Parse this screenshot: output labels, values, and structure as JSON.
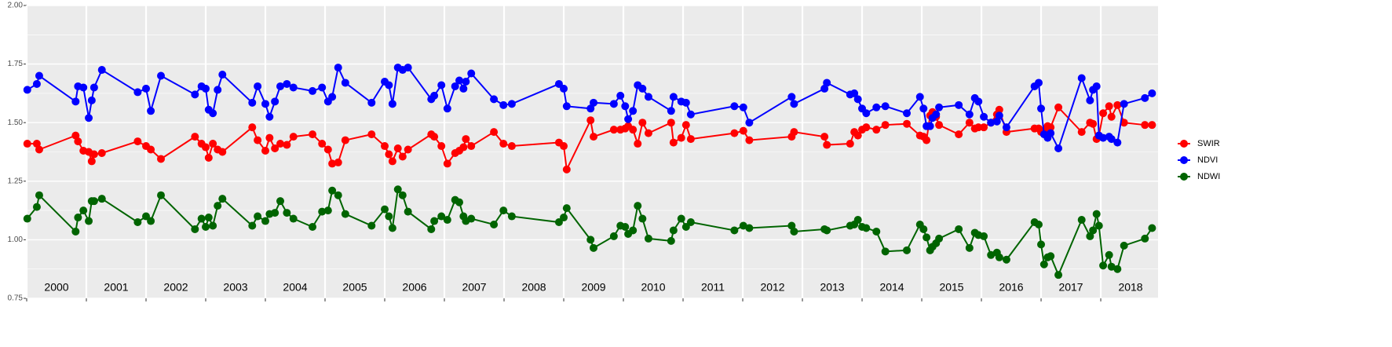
{
  "chart_data": {
    "type": "line",
    "x": [
      2000.01,
      2000.17,
      2000.21,
      2000.82,
      2000.86,
      2000.95,
      2001.04,
      2001.09,
      2001.13,
      2001.26,
      2001.86,
      2002.0,
      2002.08,
      2002.25,
      2002.82,
      2002.93,
      2003.0,
      2003.05,
      2003.12,
      2003.2,
      2003.28,
      2003.78,
      2003.87,
      2004.0,
      2004.07,
      2004.16,
      2004.25,
      2004.36,
      2004.47,
      2004.79,
      2004.95,
      2005.05,
      2005.12,
      2005.22,
      2005.34,
      2005.78,
      2006.0,
      2006.07,
      2006.13,
      2006.22,
      2006.3,
      2006.39,
      2006.78,
      2006.83,
      2006.95,
      2007.05,
      2007.18,
      2007.25,
      2007.32,
      2007.36,
      2007.45,
      2007.83,
      2007.99,
      2008.13,
      2008.92,
      2009.0,
      2009.05,
      2009.45,
      2009.5,
      2009.84,
      2009.95,
      2010.03,
      2010.08,
      2010.16,
      2010.24,
      2010.32,
      2010.42,
      2010.8,
      2010.84,
      2010.97,
      2011.05,
      2011.13,
      2011.86,
      2012.01,
      2012.11,
      2012.82,
      2012.86,
      2013.37,
      2013.41,
      2013.8,
      2013.87,
      2013.93,
      2014.0,
      2014.07,
      2014.24,
      2014.39,
      2014.75,
      2014.97,
      2015.03,
      2015.08,
      2015.14,
      2015.18,
      2015.24,
      2015.29,
      2015.62,
      2015.8,
      2015.89,
      2015.95,
      2016.04,
      2016.16,
      2016.26,
      2016.3,
      2016.42,
      2016.89,
      2016.96,
      2017.0,
      2017.05,
      2017.11,
      2017.16,
      2017.29,
      2017.68,
      2017.82,
      2017.87,
      2017.93,
      2017.97,
      2018.04,
      2018.14,
      2018.18,
      2018.28,
      2018.39,
      2018.74,
      2018.86
    ],
    "series": [
      {
        "name": "SWIR",
        "color": "#ff0000",
        "values": [
          1.41,
          1.41,
          1.385,
          1.445,
          1.42,
          1.38,
          1.375,
          1.335,
          1.365,
          1.37,
          1.42,
          1.4,
          1.385,
          1.345,
          1.44,
          1.41,
          1.395,
          1.35,
          1.41,
          1.385,
          1.375,
          1.48,
          1.425,
          1.38,
          1.435,
          1.39,
          1.41,
          1.405,
          1.44,
          1.45,
          1.41,
          1.385,
          1.325,
          1.33,
          1.425,
          1.45,
          1.4,
          1.365,
          1.335,
          1.39,
          1.355,
          1.385,
          1.45,
          1.44,
          1.4,
          1.325,
          1.37,
          1.38,
          1.395,
          1.43,
          1.4,
          1.46,
          1.41,
          1.4,
          1.415,
          1.4,
          1.3,
          1.51,
          1.44,
          1.47,
          1.47,
          1.475,
          1.485,
          1.47,
          1.41,
          1.5,
          1.455,
          1.5,
          1.415,
          1.435,
          1.49,
          1.43,
          1.455,
          1.465,
          1.425,
          1.44,
          1.46,
          1.44,
          1.405,
          1.41,
          1.46,
          1.445,
          1.47,
          1.48,
          1.47,
          1.49,
          1.495,
          1.445,
          1.44,
          1.425,
          1.53,
          1.545,
          1.525,
          1.49,
          1.45,
          1.5,
          1.475,
          1.48,
          1.48,
          1.5,
          1.535,
          1.555,
          1.46,
          1.475,
          1.475,
          1.46,
          1.465,
          1.485,
          1.48,
          1.565,
          1.46,
          1.5,
          1.495,
          1.43,
          1.445,
          1.54,
          1.57,
          1.525,
          1.575,
          1.5,
          1.49,
          1.49
        ]
      },
      {
        "name": "NDVI",
        "color": "#0000ff",
        "values": [
          1.64,
          1.665,
          1.7,
          1.59,
          1.655,
          1.65,
          1.52,
          1.595,
          1.65,
          1.725,
          1.63,
          1.645,
          1.55,
          1.7,
          1.62,
          1.655,
          1.645,
          1.555,
          1.54,
          1.64,
          1.705,
          1.585,
          1.655,
          1.58,
          1.525,
          1.59,
          1.655,
          1.665,
          1.65,
          1.635,
          1.65,
          1.59,
          1.61,
          1.735,
          1.67,
          1.585,
          1.675,
          1.66,
          1.58,
          1.735,
          1.725,
          1.735,
          1.6,
          1.615,
          1.66,
          1.56,
          1.655,
          1.68,
          1.645,
          1.675,
          1.71,
          1.6,
          1.575,
          1.58,
          1.665,
          1.645,
          1.57,
          1.56,
          1.585,
          1.58,
          1.615,
          1.57,
          1.515,
          1.55,
          1.66,
          1.645,
          1.61,
          1.55,
          1.61,
          1.59,
          1.585,
          1.535,
          1.57,
          1.565,
          1.5,
          1.61,
          1.58,
          1.645,
          1.67,
          1.62,
          1.625,
          1.6,
          1.56,
          1.54,
          1.565,
          1.57,
          1.54,
          1.61,
          1.56,
          1.485,
          1.485,
          1.52,
          1.535,
          1.565,
          1.575,
          1.535,
          1.605,
          1.59,
          1.525,
          1.5,
          1.505,
          1.53,
          1.48,
          1.655,
          1.67,
          1.56,
          1.45,
          1.435,
          1.455,
          1.39,
          1.69,
          1.595,
          1.64,
          1.655,
          1.445,
          1.435,
          1.44,
          1.43,
          1.415,
          1.58,
          1.605,
          1.625
        ]
      },
      {
        "name": "NDWI",
        "color": "#006400",
        "values": [
          1.09,
          1.14,
          1.19,
          1.035,
          1.095,
          1.125,
          1.08,
          1.165,
          1.165,
          1.175,
          1.075,
          1.1,
          1.08,
          1.19,
          1.045,
          1.09,
          1.055,
          1.095,
          1.06,
          1.145,
          1.175,
          1.06,
          1.1,
          1.08,
          1.11,
          1.115,
          1.165,
          1.115,
          1.09,
          1.055,
          1.12,
          1.125,
          1.21,
          1.19,
          1.11,
          1.06,
          1.13,
          1.1,
          1.05,
          1.215,
          1.19,
          1.12,
          1.045,
          1.08,
          1.1,
          1.085,
          1.17,
          1.16,
          1.1,
          1.08,
          1.09,
          1.065,
          1.125,
          1.1,
          1.075,
          1.095,
          1.135,
          1.0,
          0.965,
          1.015,
          1.06,
          1.055,
          1.025,
          1.04,
          1.145,
          1.09,
          1.005,
          0.995,
          1.04,
          1.09,
          1.055,
          1.075,
          1.04,
          1.06,
          1.05,
          1.06,
          1.035,
          1.045,
          1.04,
          1.06,
          1.065,
          1.085,
          1.055,
          1.05,
          1.035,
          0.95,
          0.955,
          1.065,
          1.045,
          1.01,
          0.955,
          0.97,
          0.985,
          1.005,
          1.045,
          0.965,
          1.03,
          1.02,
          1.015,
          0.935,
          0.945,
          0.925,
          0.915,
          1.075,
          1.065,
          0.98,
          0.895,
          0.925,
          0.93,
          0.85,
          1.085,
          1.015,
          1.04,
          1.11,
          1.06,
          0.89,
          0.935,
          0.885,
          0.875,
          0.975,
          1.005,
          1.05
        ]
      }
    ],
    "xlim": [
      2000,
      2018.96
    ],
    "xticks": [
      2000,
      2001,
      2002,
      2003,
      2004,
      2005,
      2006,
      2007,
      2008,
      2009,
      2010,
      2011,
      2012,
      2013,
      2014,
      2015,
      2016,
      2017,
      2018
    ],
    "ylim": [
      0.75,
      2.0
    ],
    "yticks": [
      0.75,
      {
        "value": 1,
        "label": "1.00"
      },
      1.25,
      {
        "value": 1.5,
        "label": "1.50"
      },
      1.75,
      {
        "value": 2,
        "label": "2.00"
      }
    ],
    "grid": true,
    "legend": "right"
  }
}
